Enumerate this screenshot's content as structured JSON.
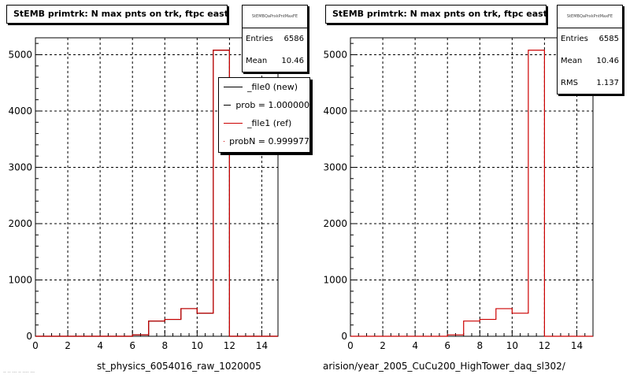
{
  "footer": "·· ·· ··· ·· ···· ···",
  "pads": [
    {
      "title": "StEMB primtrk: N max pnts on trk, ftpc east",
      "stats": {
        "name": "StEMBQaPrxkPntMaxFE",
        "rows": [
          {
            "label": "Entries",
            "value": "6586"
          },
          {
            "label": "Mean",
            "value": "10.46"
          }
        ]
      },
      "legend": [
        {
          "label": "_file0 (new)",
          "color": "#000000"
        },
        {
          "label": "prob = 1.000000",
          "color": "#000000"
        },
        {
          "label": "_file1 (ref)",
          "color": "#cc0000"
        },
        {
          "label": "probN = 0.999977",
          "color": "#cc0000"
        }
      ],
      "xaxis_title": "st_physics_6054016_raw_1020005"
    },
    {
      "title": "StEMB primtrk: N max pnts on trk, ftpc east",
      "stats": {
        "name": "StEMBQaPrxkPntMaxFE",
        "rows": [
          {
            "label": "Entries",
            "value": "6585"
          },
          {
            "label": "Mean",
            "value": "10.46"
          },
          {
            "label": "RMS",
            "value": "1.137"
          }
        ]
      },
      "legend": [],
      "xaxis_title": "arision/year_2005_CuCu200_HighTower_daq_sl302/"
    }
  ],
  "chart_data": [
    {
      "type": "bar",
      "title": "StEMB primtrk: N max pnts on trk, ftpc east",
      "xlim": [
        0,
        15
      ],
      "ylim": [
        0,
        5300
      ],
      "x_ticks": [
        0,
        2,
        4,
        6,
        8,
        10,
        12,
        14
      ],
      "y_ticks": [
        0,
        1000,
        2000,
        3000,
        4000,
        5000
      ],
      "grid": true,
      "bin_edges": [
        0,
        1,
        2,
        3,
        4,
        5,
        6,
        7,
        8,
        9,
        10,
        11,
        12,
        13,
        14,
        15
      ],
      "series": [
        {
          "name": "_file0 (new)",
          "color": "#000000",
          "values": [
            0,
            0,
            0,
            0,
            0,
            0,
            25,
            270,
            300,
            490,
            410,
            5080,
            0,
            0,
            0
          ]
        },
        {
          "name": "_file1 (ref)",
          "color": "#cc0000",
          "values": [
            0,
            0,
            0,
            0,
            0,
            0,
            25,
            270,
            300,
            490,
            410,
            5080,
            0,
            0,
            0
          ]
        }
      ]
    },
    {
      "type": "bar",
      "title": "StEMB primtrk: N max pnts on trk, ftpc east",
      "xlim": [
        0,
        15
      ],
      "ylim": [
        0,
        5300
      ],
      "x_ticks": [
        0,
        2,
        4,
        6,
        8,
        10,
        12,
        14
      ],
      "y_ticks": [
        0,
        1000,
        2000,
        3000,
        4000,
        5000
      ],
      "grid": true,
      "bin_edges": [
        0,
        1,
        2,
        3,
        4,
        5,
        6,
        7,
        8,
        9,
        10,
        11,
        12,
        13,
        14,
        15
      ],
      "series": [
        {
          "name": "_file1 (ref)",
          "color": "#cc0000",
          "values": [
            0,
            0,
            0,
            0,
            0,
            0,
            25,
            270,
            300,
            490,
            410,
            5080,
            0,
            0,
            0
          ]
        }
      ]
    }
  ]
}
